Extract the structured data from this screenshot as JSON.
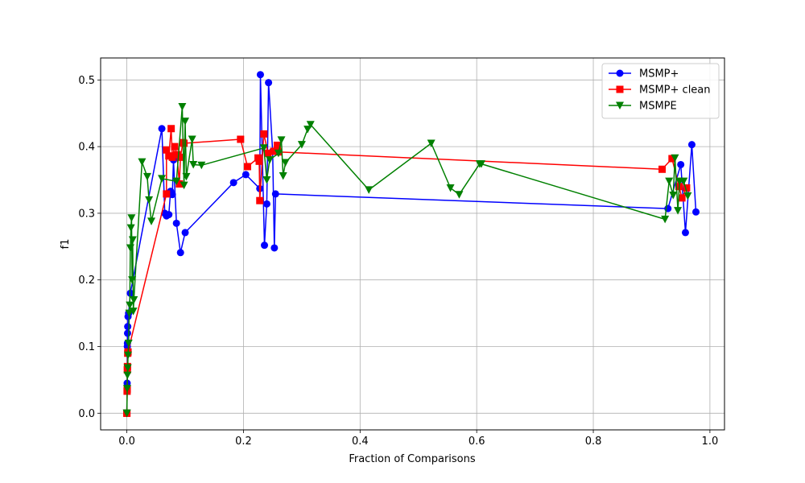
{
  "chart_data": {
    "type": "line",
    "title": "",
    "xlabel": "Fraction of Comparisons",
    "ylabel": "f1",
    "xlim": [
      -0.045,
      1.025
    ],
    "ylim": [
      -0.025,
      0.533
    ],
    "xticks": [
      0.0,
      0.2,
      0.4,
      0.6,
      0.8,
      1.0
    ],
    "xtick_labels": [
      "0.0",
      "0.2",
      "0.4",
      "0.6",
      "0.8",
      "1.0"
    ],
    "yticks": [
      0.0,
      0.1,
      0.2,
      0.3,
      0.4,
      0.5
    ],
    "ytick_labels": [
      "0.0",
      "0.1",
      "0.2",
      "0.3",
      "0.4",
      "0.5"
    ],
    "grid": true,
    "legend_position": "top-right",
    "series": [
      {
        "name": "MSMP+",
        "color": "#0000ff",
        "marker": "circle",
        "points": [
          [
            0.0,
            0.0
          ],
          [
            0.0,
            0.0
          ],
          [
            0.0005,
            0.045
          ],
          [
            0.0008,
            0.1
          ],
          [
            0.001,
            0.105
          ],
          [
            0.0012,
            0.12
          ],
          [
            0.0015,
            0.13
          ],
          [
            0.002,
            0.145
          ],
          [
            0.003,
            0.15
          ],
          [
            0.006,
            0.18
          ],
          [
            0.06,
            0.427
          ],
          [
            0.065,
            0.3
          ],
          [
            0.068,
            0.296
          ],
          [
            0.072,
            0.298
          ],
          [
            0.075,
            0.333
          ],
          [
            0.078,
            0.328
          ],
          [
            0.08,
            0.38
          ],
          [
            0.085,
            0.285
          ],
          [
            0.092,
            0.241
          ],
          [
            0.1,
            0.271
          ],
          [
            0.183,
            0.346
          ],
          [
            0.204,
            0.358
          ],
          [
            0.228,
            0.337
          ],
          [
            0.229,
            0.508
          ],
          [
            0.236,
            0.252
          ],
          [
            0.24,
            0.314
          ],
          [
            0.243,
            0.496
          ],
          [
            0.25,
            0.393
          ],
          [
            0.253,
            0.248
          ],
          [
            0.255,
            0.329
          ],
          [
            0.928,
            0.307
          ],
          [
            0.95,
            0.373
          ],
          [
            0.958,
            0.271
          ],
          [
            0.969,
            0.403
          ],
          [
            0.976,
            0.302
          ]
        ]
      },
      {
        "name": "MSMP+ clean",
        "color": "#ff0000",
        "marker": "square",
        "points": [
          [
            0.0,
            0.0
          ],
          [
            0.0,
            0.0
          ],
          [
            0.0004,
            0.033
          ],
          [
            0.0006,
            0.036
          ],
          [
            0.0008,
            0.065
          ],
          [
            0.001,
            0.07
          ],
          [
            0.0015,
            0.09
          ],
          [
            0.002,
            0.092
          ],
          [
            0.068,
            0.329
          ],
          [
            0.068,
            0.395
          ],
          [
            0.072,
            0.386
          ],
          [
            0.076,
            0.427
          ],
          [
            0.078,
            0.384
          ],
          [
            0.082,
            0.4
          ],
          [
            0.086,
            0.388
          ],
          [
            0.09,
            0.344
          ],
          [
            0.092,
            0.384
          ],
          [
            0.096,
            0.406
          ],
          [
            0.098,
            0.405
          ],
          [
            0.195,
            0.411
          ],
          [
            0.207,
            0.37
          ],
          [
            0.225,
            0.383
          ],
          [
            0.227,
            0.378
          ],
          [
            0.228,
            0.319
          ],
          [
            0.235,
            0.419
          ],
          [
            0.242,
            0.39
          ],
          [
            0.252,
            0.393
          ],
          [
            0.258,
            0.402
          ],
          [
            0.26,
            0.392
          ],
          [
            0.918,
            0.366
          ],
          [
            0.935,
            0.382
          ],
          [
            0.947,
            0.34
          ],
          [
            0.952,
            0.323
          ],
          [
            0.96,
            0.338
          ]
        ]
      },
      {
        "name": "MSMPE",
        "color": "#008000",
        "marker": "triangle-down",
        "points": [
          [
            0.0,
            0.0
          ],
          [
            0.0,
            0.0
          ],
          [
            0.0005,
            0.037
          ],
          [
            0.001,
            0.057
          ],
          [
            0.0015,
            0.068
          ],
          [
            0.002,
            0.087
          ],
          [
            0.003,
            0.105
          ],
          [
            0.004,
            0.15
          ],
          [
            0.005,
            0.162
          ],
          [
            0.006,
            0.248
          ],
          [
            0.007,
            0.278
          ],
          [
            0.008,
            0.293
          ],
          [
            0.009,
            0.2
          ],
          [
            0.01,
            0.26
          ],
          [
            0.011,
            0.153
          ],
          [
            0.012,
            0.17
          ],
          [
            0.026,
            0.377
          ],
          [
            0.035,
            0.355
          ],
          [
            0.038,
            0.32
          ],
          [
            0.042,
            0.288
          ],
          [
            0.06,
            0.352
          ],
          [
            0.085,
            0.348
          ],
          [
            0.095,
            0.46
          ],
          [
            0.098,
            0.342
          ],
          [
            0.1,
            0.438
          ],
          [
            0.102,
            0.355
          ],
          [
            0.112,
            0.411
          ],
          [
            0.114,
            0.373
          ],
          [
            0.128,
            0.372
          ],
          [
            0.235,
            0.398
          ],
          [
            0.24,
            0.35
          ],
          [
            0.245,
            0.38
          ],
          [
            0.26,
            0.39
          ],
          [
            0.265,
            0.41
          ],
          [
            0.268,
            0.356
          ],
          [
            0.272,
            0.376
          ],
          [
            0.3,
            0.403
          ],
          [
            0.31,
            0.426
          ],
          [
            0.315,
            0.433
          ],
          [
            0.415,
            0.335
          ],
          [
            0.522,
            0.405
          ],
          [
            0.555,
            0.338
          ],
          [
            0.57,
            0.328
          ],
          [
            0.605,
            0.374
          ],
          [
            0.608,
            0.374
          ],
          [
            0.923,
            0.291
          ],
          [
            0.93,
            0.348
          ],
          [
            0.937,
            0.327
          ],
          [
            0.94,
            0.383
          ],
          [
            0.945,
            0.304
          ],
          [
            0.948,
            0.348
          ],
          [
            0.955,
            0.348
          ],
          [
            0.962,
            0.326
          ]
        ]
      }
    ]
  }
}
